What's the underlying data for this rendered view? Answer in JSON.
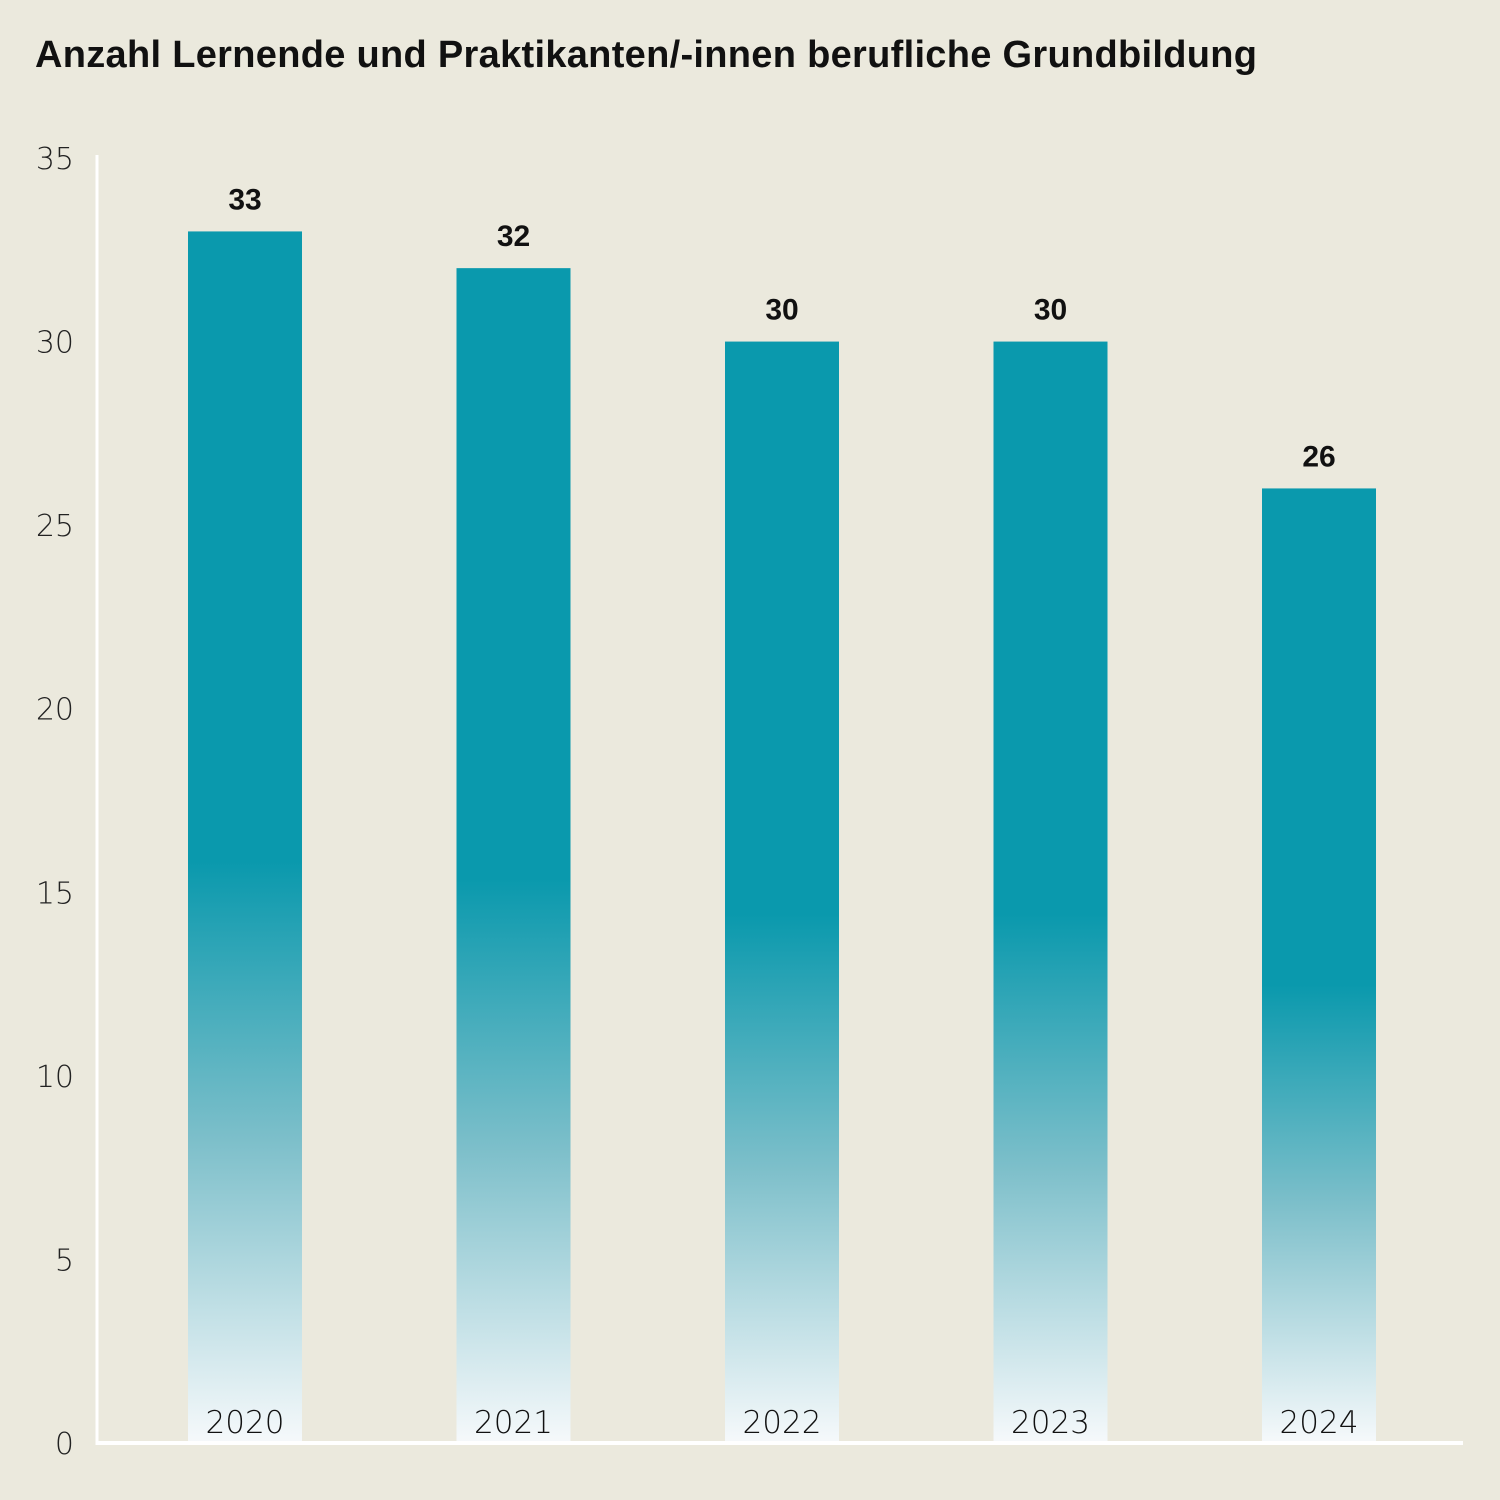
{
  "chart_data": {
    "type": "bar",
    "title": "Anzahl Lernende und Praktikanten/-innen berufliche Grundbildung",
    "categories": [
      "2020",
      "2021",
      "2022",
      "2023",
      "2024"
    ],
    "values": [
      33,
      32,
      30,
      30,
      26
    ],
    "data_labels": [
      "33",
      "32",
      "30",
      "30",
      "26"
    ],
    "ylim": [
      0,
      35
    ],
    "yticks": [
      0,
      5,
      10,
      15,
      20,
      25,
      30,
      35
    ],
    "xlabel": "",
    "ylabel": "",
    "grid": false,
    "colors": {
      "bar": "#0a99ad",
      "bar_fade": "#f6f9fb",
      "background": "#ebe9dd",
      "axis": "#ffffff"
    }
  }
}
